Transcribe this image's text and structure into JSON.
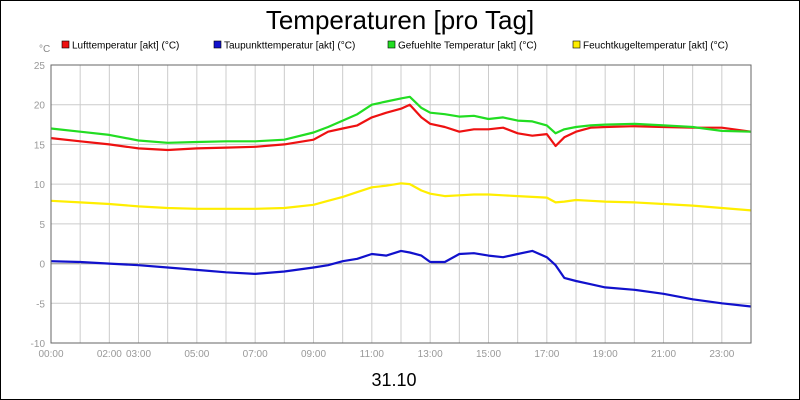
{
  "chart_data": {
    "type": "line",
    "title": "Temperaturen [pro Tag]",
    "unit": "°C",
    "date_label": "31.10",
    "ylim": [
      -10,
      25
    ],
    "yticks": [
      -10,
      -5,
      0,
      5,
      10,
      15,
      20,
      25
    ],
    "xlim": [
      0,
      24
    ],
    "xticks": [
      {
        "hour": 0,
        "label": "00:00"
      },
      {
        "hour": 2,
        "label": "02:00"
      },
      {
        "hour": 3,
        "label": "03:00"
      },
      {
        "hour": 5,
        "label": "05:00"
      },
      {
        "hour": 7,
        "label": "07:00"
      },
      {
        "hour": 9,
        "label": "09:00"
      },
      {
        "hour": 11,
        "label": "11:00"
      },
      {
        "hour": 13,
        "label": "13:00"
      },
      {
        "hour": 15,
        "label": "15:00"
      },
      {
        "hour": 17,
        "label": "17:00"
      },
      {
        "hour": 19,
        "label": "19:00"
      },
      {
        "hour": 21,
        "label": "21:00"
      },
      {
        "hour": 23,
        "label": "23:00"
      }
    ],
    "grid": true,
    "legend_position": "top",
    "x": [
      0,
      1,
      2,
      3,
      4,
      5,
      6,
      7,
      8,
      9,
      9.5,
      10,
      10.5,
      11,
      11.5,
      12,
      12.3,
      12.7,
      13,
      13.5,
      14,
      14.5,
      15,
      15.5,
      16,
      16.5,
      17,
      17.3,
      17.6,
      18,
      18.5,
      19,
      20,
      21,
      22,
      23,
      24
    ],
    "series": [
      {
        "name": "Lufttemperatur [akt] (°C)",
        "color": "#ee1111",
        "values": [
          15.8,
          15.4,
          15.0,
          14.5,
          14.3,
          14.5,
          14.6,
          14.7,
          15.0,
          15.6,
          16.6,
          17.0,
          17.4,
          18.4,
          19.0,
          19.5,
          20.0,
          18.4,
          17.6,
          17.2,
          16.6,
          16.9,
          16.9,
          17.1,
          16.4,
          16.1,
          16.3,
          14.8,
          15.9,
          16.6,
          17.1,
          17.2,
          17.3,
          17.2,
          17.1,
          17.1,
          16.6
        ]
      },
      {
        "name": "Taupunkttemperatur [akt] (°C)",
        "color": "#1111cc",
        "values": [
          0.3,
          0.2,
          0.0,
          -0.2,
          -0.5,
          -0.8,
          -1.1,
          -1.3,
          -1.0,
          -0.5,
          -0.2,
          0.3,
          0.6,
          1.2,
          1.0,
          1.6,
          1.4,
          1.0,
          0.2,
          0.2,
          1.2,
          1.3,
          1.0,
          0.8,
          1.2,
          1.6,
          0.8,
          -0.2,
          -1.8,
          -2.2,
          -2.6,
          -3.0,
          -3.3,
          -3.8,
          -4.5,
          -5.0,
          -5.4
        ]
      },
      {
        "name": "Gefuehlte Temperatur [akt] (°C)",
        "color": "#22dd22",
        "values": [
          17.0,
          16.6,
          16.2,
          15.5,
          15.2,
          15.3,
          15.4,
          15.4,
          15.6,
          16.5,
          17.2,
          18.0,
          18.8,
          20.0,
          20.4,
          20.8,
          21.0,
          19.6,
          19.0,
          18.8,
          18.5,
          18.6,
          18.2,
          18.4,
          18.0,
          17.9,
          17.4,
          16.4,
          16.9,
          17.2,
          17.4,
          17.5,
          17.6,
          17.4,
          17.2,
          16.7,
          16.6
        ]
      },
      {
        "name": "Feuchtkugeltemperatur [akt] (°C)",
        "color": "#ffee00",
        "values": [
          7.9,
          7.7,
          7.5,
          7.2,
          7.0,
          6.9,
          6.9,
          6.9,
          7.0,
          7.4,
          7.9,
          8.4,
          9.0,
          9.6,
          9.8,
          10.1,
          10.0,
          9.2,
          8.8,
          8.5,
          8.6,
          8.7,
          8.7,
          8.6,
          8.5,
          8.4,
          8.3,
          7.7,
          7.8,
          8.0,
          7.9,
          7.8,
          7.7,
          7.5,
          7.3,
          7.0,
          6.7
        ]
      }
    ]
  }
}
